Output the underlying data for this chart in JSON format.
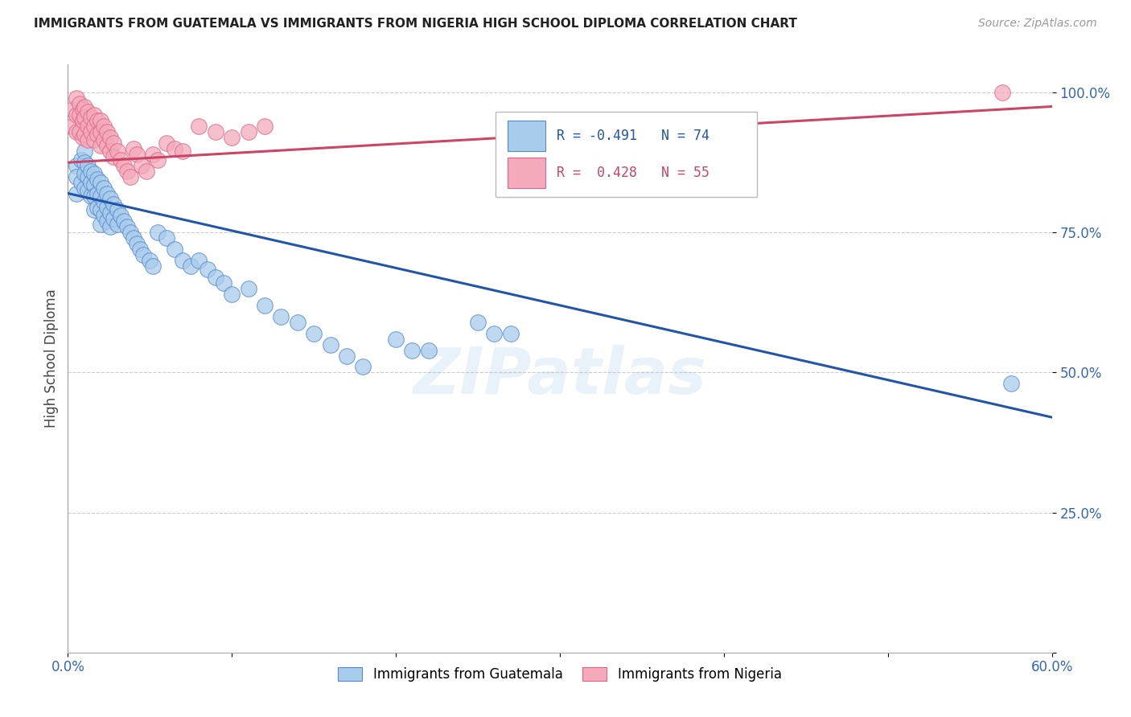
{
  "title": "IMMIGRANTS FROM GUATEMALA VS IMMIGRANTS FROM NIGERIA HIGH SCHOOL DIPLOMA CORRELATION CHART",
  "source": "Source: ZipAtlas.com",
  "ylabel": "High School Diploma",
  "watermark": "ZIPatlas",
  "blue_color": "#A8CCEC",
  "blue_edge_color": "#5588CC",
  "blue_line_color": "#2255AA",
  "pink_color": "#F4AABB",
  "pink_edge_color": "#DD6688",
  "pink_line_color": "#CC4466",
  "xlim": [
    0.0,
    0.6
  ],
  "ylim": [
    0.0,
    1.05
  ],
  "blue_line_x0": 0.0,
  "blue_line_y0": 0.82,
  "blue_line_x1": 0.6,
  "blue_line_y1": 0.42,
  "pink_line_x0": 0.0,
  "pink_line_y0": 0.875,
  "pink_line_x1": 0.6,
  "pink_line_y1": 0.975,
  "guatemala_x": [
    0.005,
    0.005,
    0.005,
    0.008,
    0.008,
    0.01,
    0.01,
    0.01,
    0.01,
    0.012,
    0.012,
    0.012,
    0.014,
    0.014,
    0.014,
    0.016,
    0.016,
    0.016,
    0.016,
    0.018,
    0.018,
    0.018,
    0.02,
    0.02,
    0.02,
    0.02,
    0.022,
    0.022,
    0.022,
    0.024,
    0.024,
    0.024,
    0.026,
    0.026,
    0.026,
    0.028,
    0.028,
    0.03,
    0.03,
    0.032,
    0.034,
    0.036,
    0.038,
    0.04,
    0.042,
    0.044,
    0.046,
    0.05,
    0.052,
    0.055,
    0.06,
    0.065,
    0.07,
    0.075,
    0.08,
    0.085,
    0.09,
    0.095,
    0.1,
    0.11,
    0.12,
    0.13,
    0.14,
    0.15,
    0.16,
    0.17,
    0.18,
    0.2,
    0.21,
    0.22,
    0.25,
    0.26,
    0.27,
    0.575
  ],
  "guatemala_y": [
    0.87,
    0.85,
    0.82,
    0.88,
    0.84,
    0.895,
    0.875,
    0.855,
    0.83,
    0.87,
    0.85,
    0.825,
    0.86,
    0.84,
    0.815,
    0.855,
    0.835,
    0.815,
    0.79,
    0.845,
    0.82,
    0.795,
    0.84,
    0.815,
    0.79,
    0.765,
    0.83,
    0.805,
    0.78,
    0.82,
    0.795,
    0.77,
    0.81,
    0.785,
    0.76,
    0.8,
    0.775,
    0.79,
    0.765,
    0.78,
    0.77,
    0.76,
    0.75,
    0.74,
    0.73,
    0.72,
    0.71,
    0.7,
    0.69,
    0.75,
    0.74,
    0.72,
    0.7,
    0.69,
    0.7,
    0.685,
    0.67,
    0.66,
    0.64,
    0.65,
    0.62,
    0.6,
    0.59,
    0.57,
    0.55,
    0.53,
    0.51,
    0.56,
    0.54,
    0.54,
    0.59,
    0.57,
    0.57,
    0.48
  ],
  "nigeria_x": [
    0.003,
    0.003,
    0.005,
    0.005,
    0.005,
    0.007,
    0.007,
    0.007,
    0.009,
    0.009,
    0.009,
    0.01,
    0.01,
    0.01,
    0.012,
    0.012,
    0.012,
    0.014,
    0.014,
    0.016,
    0.016,
    0.016,
    0.018,
    0.018,
    0.02,
    0.02,
    0.02,
    0.022,
    0.022,
    0.024,
    0.024,
    0.026,
    0.026,
    0.028,
    0.028,
    0.03,
    0.032,
    0.034,
    0.036,
    0.038,
    0.04,
    0.042,
    0.045,
    0.048,
    0.052,
    0.055,
    0.06,
    0.065,
    0.07,
    0.08,
    0.09,
    0.1,
    0.11,
    0.12,
    0.57
  ],
  "nigeria_y": [
    0.97,
    0.94,
    0.99,
    0.96,
    0.93,
    0.98,
    0.96,
    0.93,
    0.97,
    0.95,
    0.92,
    0.975,
    0.955,
    0.925,
    0.965,
    0.94,
    0.915,
    0.955,
    0.93,
    0.96,
    0.94,
    0.915,
    0.95,
    0.925,
    0.95,
    0.93,
    0.905,
    0.94,
    0.915,
    0.93,
    0.905,
    0.92,
    0.895,
    0.91,
    0.885,
    0.895,
    0.88,
    0.87,
    0.86,
    0.85,
    0.9,
    0.89,
    0.87,
    0.86,
    0.89,
    0.88,
    0.91,
    0.9,
    0.895,
    0.94,
    0.93,
    0.92,
    0.93,
    0.94,
    1.0
  ]
}
